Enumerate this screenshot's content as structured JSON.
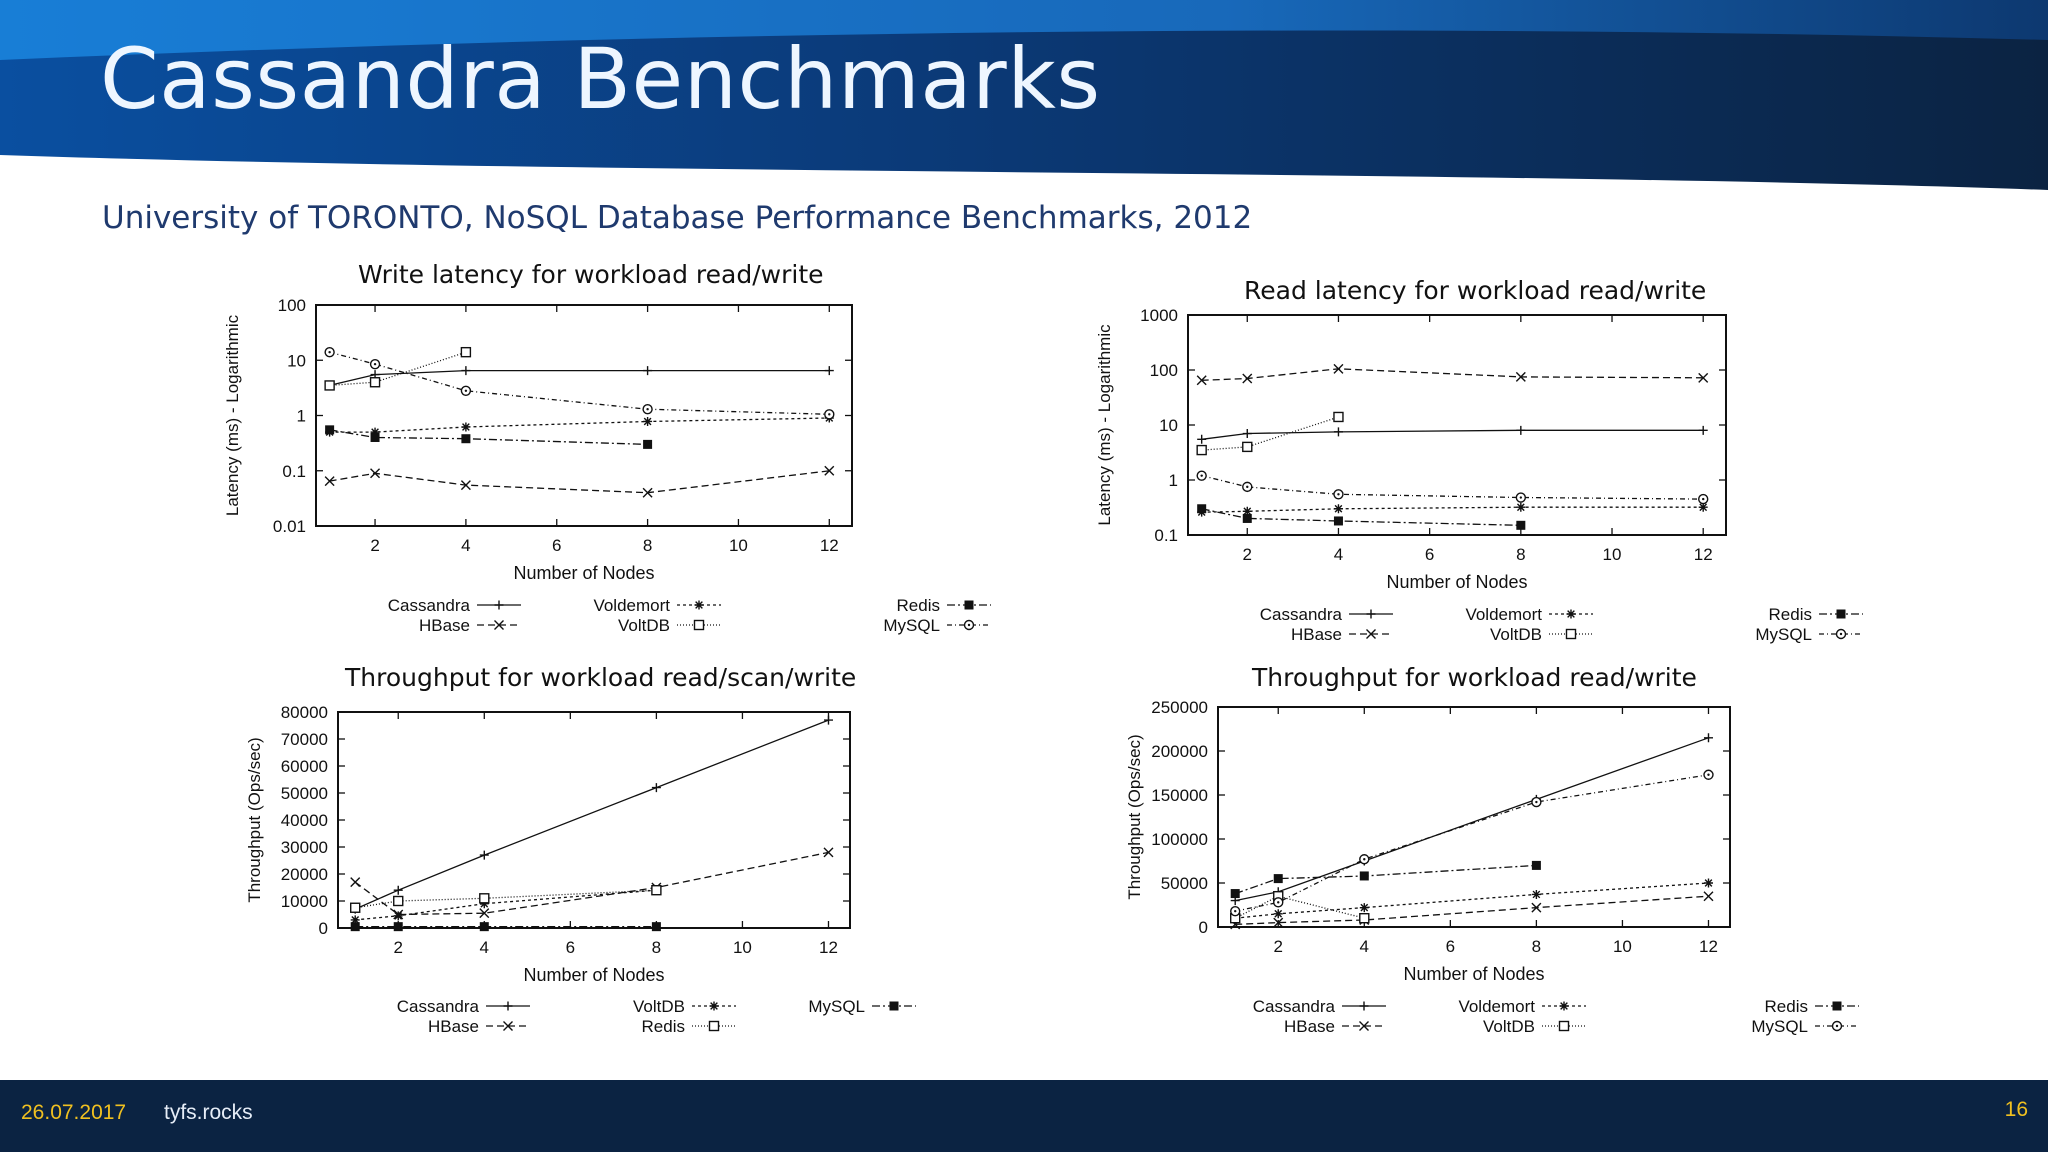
{
  "slide": {
    "title": "Cassandra Benchmarks",
    "subtitle": "University of TORONTO, NoSQL Database Performance Benchmarks, 2012"
  },
  "footer": {
    "date": "26.07.2017",
    "site": "tyfs.rocks",
    "page_number": "16"
  },
  "colors": {
    "banner_dark": "#0b2342",
    "banner_light": "#1a7fd6",
    "subtitle": "#1f3a6e",
    "footer_date": "#f0c020"
  },
  "chart_data": [
    {
      "id": "write-latency",
      "type": "line",
      "title": "Write latency for workload read/write",
      "xlabel": "Number of Nodes",
      "ylabel": "Latency (ms) - Logarithmic",
      "yscale": "log",
      "xlim": [
        0.7,
        12.5
      ],
      "ylim": [
        0.01,
        100
      ],
      "xticks": [
        2,
        4,
        6,
        8,
        10,
        12
      ],
      "yticks": [
        0.01,
        0.1,
        1,
        10,
        100
      ],
      "ytick_labels": [
        "0.01",
        "0.1",
        "1",
        "10",
        "100"
      ],
      "legend_position": "bottom",
      "grid": false,
      "series": [
        {
          "name": "Cassandra",
          "marker": "plus",
          "dash": "",
          "points": [
            [
              1,
              3.5
            ],
            [
              2,
              5.5
            ],
            [
              4,
              6.5
            ],
            [
              8,
              6.5
            ],
            [
              12,
              6.5
            ]
          ]
        },
        {
          "name": "HBase",
          "marker": "x",
          "dash": "7,4",
          "points": [
            [
              1,
              0.065
            ],
            [
              2,
              0.09
            ],
            [
              4,
              0.055
            ],
            [
              8,
              0.04
            ],
            [
              12,
              0.1
            ]
          ]
        },
        {
          "name": "Voldemort",
          "marker": "star",
          "dash": "3,3",
          "points": [
            [
              1,
              0.5
            ],
            [
              2,
              0.5
            ],
            [
              4,
              0.62
            ],
            [
              8,
              0.78
            ],
            [
              12,
              0.9
            ]
          ]
        },
        {
          "name": "VoltDB",
          "marker": "square",
          "dash": "1,2",
          "points": [
            [
              1,
              3.5
            ],
            [
              2,
              4
            ],
            [
              4,
              14
            ]
          ]
        },
        {
          "name": "Redis",
          "marker": "filled-square",
          "dash": "8,3,2,3",
          "points": [
            [
              1,
              0.55
            ],
            [
              2,
              0.4
            ],
            [
              4,
              0.38
            ],
            [
              8,
              0.3
            ]
          ]
        },
        {
          "name": "MySQL",
          "marker": "circle",
          "dash": "5,3,1,3",
          "points": [
            [
              1,
              14
            ],
            [
              2,
              8.5
            ],
            [
              4,
              2.8
            ],
            [
              8,
              1.3
            ],
            [
              12,
              1.05
            ]
          ]
        }
      ]
    },
    {
      "id": "read-latency",
      "type": "line",
      "title": "Read latency for workload read/write",
      "xlabel": "Number of Nodes",
      "ylabel": "Latency (ms) - Logarithmic",
      "yscale": "log",
      "xlim": [
        0.7,
        12.5
      ],
      "ylim": [
        0.1,
        1000
      ],
      "xticks": [
        2,
        4,
        6,
        8,
        10,
        12
      ],
      "yticks": [
        0.1,
        1,
        10,
        100,
        1000
      ],
      "ytick_labels": [
        "0.1",
        "1",
        "10",
        "100",
        "1000"
      ],
      "legend_position": "bottom",
      "grid": false,
      "series": [
        {
          "name": "Cassandra",
          "marker": "plus",
          "dash": "",
          "points": [
            [
              1,
              5.5
            ],
            [
              2,
              7
            ],
            [
              4,
              7.5
            ],
            [
              8,
              8
            ],
            [
              12,
              8
            ]
          ]
        },
        {
          "name": "HBase",
          "marker": "x",
          "dash": "7,4",
          "points": [
            [
              1,
              65
            ],
            [
              2,
              70
            ],
            [
              4,
              105
            ],
            [
              8,
              75
            ],
            [
              12,
              72
            ]
          ]
        },
        {
          "name": "Voldemort",
          "marker": "star",
          "dash": "3,3",
          "points": [
            [
              1,
              0.26
            ],
            [
              2,
              0.27
            ],
            [
              4,
              0.3
            ],
            [
              8,
              0.32
            ],
            [
              12,
              0.32
            ]
          ]
        },
        {
          "name": "VoltDB",
          "marker": "square",
          "dash": "1,2",
          "points": [
            [
              1,
              3.5
            ],
            [
              2,
              4
            ],
            [
              4,
              14
            ]
          ]
        },
        {
          "name": "Redis",
          "marker": "filled-square",
          "dash": "8,3,2,3",
          "points": [
            [
              1,
              0.3
            ],
            [
              2,
              0.2
            ],
            [
              4,
              0.18
            ],
            [
              8,
              0.15
            ]
          ]
        },
        {
          "name": "MySQL",
          "marker": "circle",
          "dash": "5,3,1,3",
          "points": [
            [
              1,
              1.2
            ],
            [
              2,
              0.75
            ],
            [
              4,
              0.55
            ],
            [
              8,
              0.48
            ],
            [
              12,
              0.45
            ]
          ]
        }
      ]
    },
    {
      "id": "throughput-scan",
      "type": "line",
      "title": "Throughput for workload read/scan/write",
      "xlabel": "Number of Nodes",
      "ylabel": "Throughput (Ops/sec)",
      "yscale": "linear",
      "xlim": [
        0.6,
        12.5
      ],
      "ylim": [
        0,
        80000
      ],
      "xticks": [
        2,
        4,
        6,
        8,
        10,
        12
      ],
      "yticks": [
        0,
        10000,
        20000,
        30000,
        40000,
        50000,
        60000,
        70000,
        80000
      ],
      "ytick_labels": [
        "0",
        "10000",
        "20000",
        "30000",
        "40000",
        "50000",
        "60000",
        "70000",
        "80000"
      ],
      "legend_position": "bottom",
      "grid": false,
      "series": [
        {
          "name": "Cassandra",
          "marker": "plus",
          "dash": "",
          "points": [
            [
              1,
              7000
            ],
            [
              2,
              14000
            ],
            [
              4,
              27000
            ],
            [
              8,
              52000
            ],
            [
              12,
              77000
            ]
          ]
        },
        {
          "name": "HBase",
          "marker": "x",
          "dash": "7,4",
          "points": [
            [
              1,
              17000
            ],
            [
              2,
              5000
            ],
            [
              4,
              5500
            ],
            [
              8,
              15000
            ],
            [
              12,
              28000
            ]
          ]
        },
        {
          "name": "VoltDB",
          "marker": "star",
          "dash": "3,3",
          "points": [
            [
              1,
              3000
            ],
            [
              2,
              4500
            ],
            [
              4,
              9000
            ],
            [
              8,
              14000
            ]
          ]
        },
        {
          "name": "Redis",
          "marker": "square",
          "dash": "1,2",
          "points": [
            [
              1,
              7500
            ],
            [
              2,
              10000
            ],
            [
              4,
              11000
            ],
            [
              8,
              14000
            ]
          ]
        },
        {
          "name": "MySQL",
          "marker": "filled-square",
          "dash": "8,3,2,3",
          "points": [
            [
              1,
              500
            ],
            [
              2,
              500
            ],
            [
              4,
              500
            ],
            [
              8,
              500
            ]
          ]
        }
      ]
    },
    {
      "id": "throughput-rw",
      "type": "line",
      "title": "Throughput for workload read/write",
      "xlabel": "Number of Nodes",
      "ylabel": "Throughput (Ops/sec)",
      "yscale": "linear",
      "xlim": [
        0.6,
        12.5
      ],
      "ylim": [
        0,
        250000
      ],
      "xticks": [
        2,
        4,
        6,
        8,
        10,
        12
      ],
      "yticks": [
        0,
        50000,
        100000,
        150000,
        200000,
        250000
      ],
      "ytick_labels": [
        "0",
        "50000",
        "100000",
        "150000",
        "200000",
        "250000"
      ],
      "legend_position": "bottom",
      "grid": false,
      "series": [
        {
          "name": "Cassandra",
          "marker": "plus",
          "dash": "",
          "points": [
            [
              1,
              30000
            ],
            [
              2,
              40000
            ],
            [
              4,
              75000
            ],
            [
              8,
              145000
            ],
            [
              12,
              215000
            ]
          ]
        },
        {
          "name": "HBase",
          "marker": "x",
          "dash": "7,4",
          "points": [
            [
              1,
              3000
            ],
            [
              2,
              5000
            ],
            [
              4,
              8000
            ],
            [
              8,
              22000
            ],
            [
              12,
              35000
            ]
          ]
        },
        {
          "name": "Voldemort",
          "marker": "star",
          "dash": "3,3",
          "points": [
            [
              1,
              10000
            ],
            [
              2,
              15000
            ],
            [
              4,
              22000
            ],
            [
              8,
              37000
            ],
            [
              12,
              50000
            ]
          ]
        },
        {
          "name": "VoltDB",
          "marker": "square",
          "dash": "1,2",
          "points": [
            [
              1,
              10000
            ],
            [
              2,
              35000
            ],
            [
              4,
              10000
            ]
          ]
        },
        {
          "name": "Redis",
          "marker": "filled-square",
          "dash": "8,3,2,3",
          "points": [
            [
              1,
              38000
            ],
            [
              2,
              55000
            ],
            [
              4,
              58000
            ],
            [
              8,
              70000
            ]
          ]
        },
        {
          "name": "MySQL",
          "marker": "circle",
          "dash": "5,3,1,3",
          "points": [
            [
              1,
              18000
            ],
            [
              2,
              28000
            ],
            [
              4,
              77000
            ],
            [
              8,
              142000
            ],
            [
              12,
              173000
            ]
          ]
        }
      ]
    }
  ]
}
